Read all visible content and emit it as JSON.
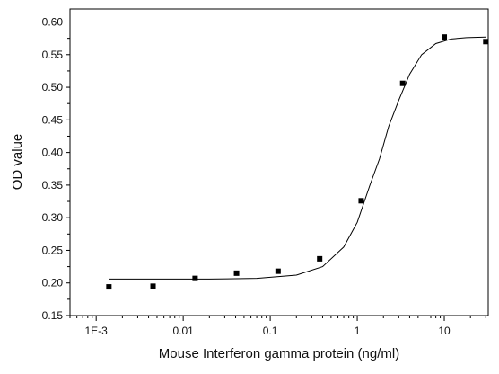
{
  "chart_data": {
    "type": "scatter",
    "title": "",
    "xlabel": "Mouse Interferon gamma protein (ng/ml)",
    "ylabel": "OD value",
    "x_scale": "log",
    "xlim": [
      0.0005,
      32
    ],
    "ylim": [
      0.15,
      0.62
    ],
    "x_ticks": [
      0.001,
      0.01,
      0.1,
      1,
      10
    ],
    "x_tick_labels": [
      "1E-3",
      "0.01",
      "0.1",
      "1",
      "10"
    ],
    "y_ticks": [
      0.15,
      0.2,
      0.25,
      0.3,
      0.35,
      0.4,
      0.45,
      0.5,
      0.55,
      0.6
    ],
    "y_tick_labels": [
      "0.15",
      "0.20",
      "0.25",
      "0.30",
      "0.35",
      "0.40",
      "0.45",
      "0.50",
      "0.55",
      "0.60"
    ],
    "grid": false,
    "legend": "none",
    "series": [
      {
        "type": "scatter",
        "x": [
          0.0014,
          0.0045,
          0.0137,
          0.041,
          0.123,
          0.37,
          1.11,
          3.33,
          10.0,
          30.0
        ],
        "y": [
          0.194,
          0.195,
          0.207,
          0.215,
          0.218,
          0.237,
          0.326,
          0.506,
          0.577,
          0.57
        ]
      },
      {
        "type": "line",
        "x": [
          0.0014,
          0.005,
          0.02,
          0.07,
          0.2,
          0.4,
          0.7,
          1.0,
          1.4,
          1.8,
          2.3,
          3.0,
          4.0,
          5.5,
          8.0,
          12.0,
          18.0,
          30.0
        ],
        "y": [
          0.206,
          0.206,
          0.206,
          0.207,
          0.212,
          0.225,
          0.255,
          0.293,
          0.35,
          0.39,
          0.44,
          0.48,
          0.52,
          0.55,
          0.567,
          0.574,
          0.576,
          0.577
        ]
      }
    ]
  }
}
